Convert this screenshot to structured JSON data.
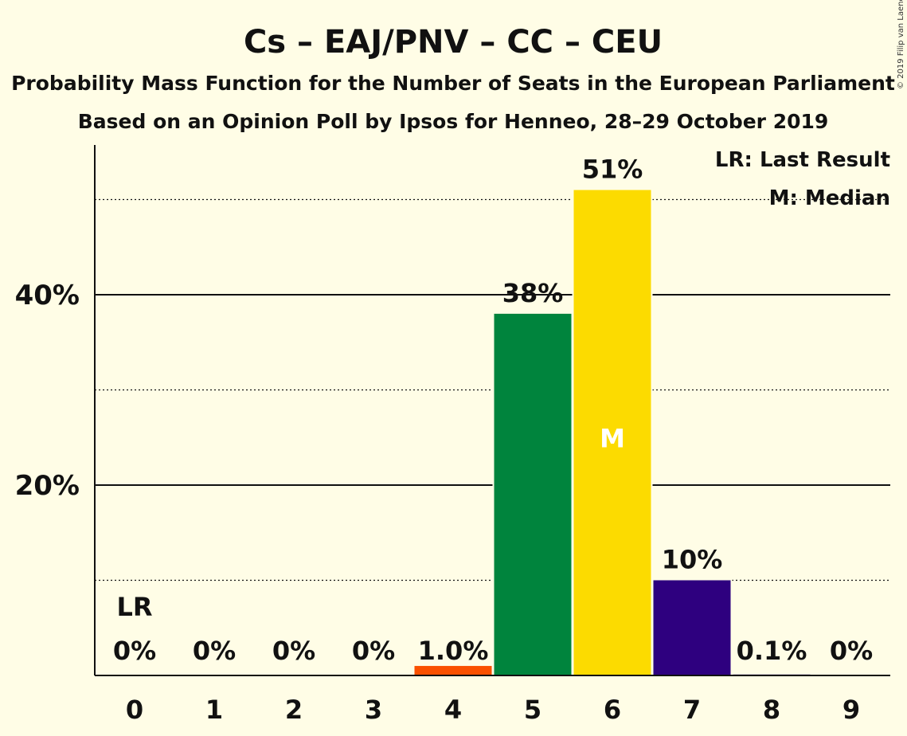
{
  "chart_data": {
    "type": "bar",
    "title": "Cs – EAJ/PNV – CC – CEU",
    "subtitle1": "Probability Mass Function for the Number of Seats in the European Parliament",
    "subtitle2": "Based on an Opinion Poll by Ipsos for Henneo, 28–29 October 2019",
    "copyright": "© 2019 Filip van Laenen",
    "legend": {
      "lr": "LR: Last Result",
      "median": "M: Median"
    },
    "categories": [
      "0",
      "1",
      "2",
      "3",
      "4",
      "5",
      "6",
      "7",
      "8",
      "9"
    ],
    "values": [
      0,
      0,
      0,
      0,
      1.0,
      38,
      51,
      10,
      0.1,
      0
    ],
    "value_labels": [
      "0%",
      "0%",
      "0%",
      "0%",
      "1.0%",
      "38%",
      "51%",
      "10%",
      "0.1%",
      "0%"
    ],
    "colors": [
      "#FA5000",
      "#FA5000",
      "#FA5000",
      "#FA5000",
      "#FA5000",
      "#00843D",
      "#FCDB00",
      "#2E007F",
      "#2E007F",
      "#2E007F"
    ],
    "ylim": [
      0,
      55
    ],
    "yticks": [
      20,
      40
    ],
    "ytick_labels": [
      "20%",
      "40%"
    ],
    "minor_gridlines": [
      10,
      30,
      50
    ],
    "last_result_category": "0",
    "last_result_label": "LR",
    "median_category": "6",
    "median_label": "M"
  }
}
